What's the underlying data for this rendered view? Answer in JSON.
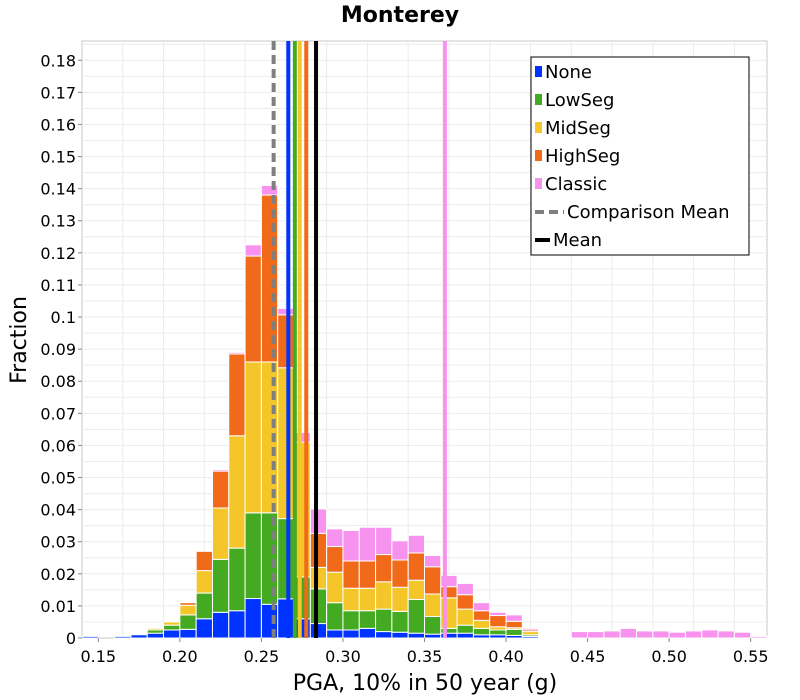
{
  "chart_data": {
    "type": "bar",
    "stacked": true,
    "title": "Monterey",
    "xlabel": "PGA, 10% in 50 year (g)",
    "ylabel": "Fraction",
    "xlim": [
      0.14,
      0.56
    ],
    "ylim": [
      0,
      0.186
    ],
    "bin_width": 0.01,
    "grid": true,
    "legend_position": "top-right",
    "x_ticks": [
      0.15,
      0.2,
      0.25,
      0.3,
      0.35,
      0.4,
      0.45,
      0.5,
      0.55
    ],
    "x_tick_labels": [
      "0.15",
      "0.20",
      "0.25",
      "0.30",
      "0.35",
      "0.40",
      "0.45",
      "0.50",
      "0.55"
    ],
    "y_ticks": [
      0,
      0.01,
      0.02,
      0.03,
      0.04,
      0.05,
      0.06,
      0.07,
      0.08,
      0.09,
      0.1,
      0.11,
      0.12,
      0.13,
      0.14,
      0.15,
      0.16,
      0.17,
      0.18
    ],
    "y_tick_labels": [
      "0",
      "0.01",
      "0.02",
      "0.03",
      "0.04",
      "0.05",
      "0.06",
      "0.07",
      "0.08",
      "0.09",
      "0.1",
      "0.11",
      "0.12",
      "0.13",
      "0.14",
      "0.15",
      "0.16",
      "0.17",
      "0.18"
    ],
    "bin_centers": [
      0.145,
      0.155,
      0.165,
      0.175,
      0.185,
      0.195,
      0.205,
      0.215,
      0.225,
      0.235,
      0.245,
      0.255,
      0.265,
      0.275,
      0.285,
      0.295,
      0.305,
      0.315,
      0.325,
      0.335,
      0.345,
      0.355,
      0.365,
      0.375,
      0.385,
      0.395,
      0.405,
      0.415,
      0.425,
      0.435,
      0.445,
      0.455,
      0.465,
      0.475,
      0.485,
      0.495,
      0.505,
      0.515,
      0.525,
      0.535,
      0.545,
      0.555
    ],
    "series": [
      {
        "name": "None",
        "color": "#0033ff",
        "values": [
          0.0005,
          0,
          0.0005,
          0.001,
          0.0015,
          0.0025,
          0.0027,
          0.006,
          0.008,
          0.0085,
          0.0123,
          0.0105,
          0.0122,
          0.006,
          0.0045,
          0.0025,
          0.0025,
          0.003,
          0.002,
          0.0018,
          0.0015,
          0.0012,
          0.0015,
          0.0015,
          0.001,
          0.001,
          0.0008,
          0.0005,
          0.0003,
          0,
          0,
          0,
          0,
          0,
          0,
          0,
          0,
          0,
          0,
          0,
          0,
          0
        ]
      },
      {
        "name": "LowSeg",
        "color": "#44aa22",
        "values": [
          0,
          0,
          0,
          0,
          0.001,
          0.0015,
          0.0045,
          0.008,
          0.0165,
          0.0195,
          0.0267,
          0.0285,
          0.025,
          0.013,
          0.0108,
          0.0085,
          0.006,
          0.0055,
          0.007,
          0.0065,
          0.0105,
          0.0055,
          0.0015,
          0.0025,
          0.002,
          0.0015,
          0.0019,
          0.0005,
          0.0002,
          0,
          0,
          0,
          0,
          0,
          0,
          0,
          0,
          0,
          0,
          0,
          0,
          0
        ]
      },
      {
        "name": "MidSeg",
        "color": "#f4c62a",
        "values": [
          0,
          0,
          0,
          0,
          0.0005,
          0.001,
          0.003,
          0.007,
          0.016,
          0.035,
          0.047,
          0.047,
          0.047,
          0.042,
          0.0067,
          0.0095,
          0.007,
          0.007,
          0.0085,
          0.0075,
          0.006,
          0.007,
          0.0095,
          0.005,
          0.0025,
          0.001,
          0.0005,
          0.001,
          0.0003,
          0,
          0,
          0,
          0,
          0,
          0,
          0,
          0,
          0,
          0,
          0,
          0,
          0
        ]
      },
      {
        "name": "HighSeg",
        "color": "#f06a1a",
        "values": [
          0,
          0,
          0,
          0,
          0,
          0,
          0.0008,
          0.006,
          0.0115,
          0.0255,
          0.033,
          0.052,
          0.0165,
          0,
          0.0106,
          0.008,
          0.0085,
          0.0085,
          0.0085,
          0.0085,
          0.0085,
          0.0085,
          0.0035,
          0.0045,
          0.003,
          0.0035,
          0.002,
          0.0005,
          0,
          0,
          0,
          0,
          0,
          0,
          0,
          0,
          0,
          0,
          0,
          0,
          0,
          0
        ]
      },
      {
        "name": "Classic",
        "color": "#f792ee",
        "values": [
          0,
          0,
          0,
          0,
          0,
          0,
          0,
          0,
          0.0005,
          0.0005,
          0.0035,
          0.003,
          0.002,
          0.003,
          0.0076,
          0.0055,
          0.0095,
          0.0105,
          0.0085,
          0.006,
          0.0055,
          0.0035,
          0.0035,
          0.0035,
          0.0025,
          0.001,
          0.002,
          0.0005,
          0.0003,
          0.0003,
          0.002,
          0.002,
          0.0022,
          0.003,
          0.0022,
          0.0022,
          0.0018,
          0.0022,
          0.0025,
          0.0022,
          0.0018,
          0.0005
        ]
      }
    ],
    "mean_lines": [
      {
        "name": "None",
        "x": 0.2665,
        "color": "#0033ff",
        "style": "solid"
      },
      {
        "name": "LowSeg",
        "x": 0.2705,
        "color": "#44aa22",
        "style": "solid"
      },
      {
        "name": "MidSeg",
        "x": 0.2735,
        "color": "#f4c62a",
        "style": "solid"
      },
      {
        "name": "HighSeg",
        "x": 0.2775,
        "color": "#f06a1a",
        "style": "solid"
      },
      {
        "name": "Classic",
        "x": 0.3625,
        "color": "#f792ee",
        "style": "solid"
      },
      {
        "name": "Comparison Mean",
        "x": 0.2575,
        "color": "#7f7f7f",
        "style": "dashed"
      },
      {
        "name": "Mean",
        "x": 0.2835,
        "color": "#000000",
        "style": "solid"
      }
    ],
    "legend": [
      {
        "label": "None",
        "color": "#0033ff",
        "kind": "box"
      },
      {
        "label": "LowSeg",
        "color": "#44aa22",
        "kind": "box"
      },
      {
        "label": "MidSeg",
        "color": "#f4c62a",
        "kind": "box"
      },
      {
        "label": "HighSeg",
        "color": "#f06a1a",
        "kind": "box"
      },
      {
        "label": "Classic",
        "color": "#f792ee",
        "kind": "box"
      },
      {
        "label": "Comparison Mean",
        "color": "#7f7f7f",
        "kind": "dashed-line"
      },
      {
        "label": "Mean",
        "color": "#000000",
        "kind": "line"
      }
    ]
  }
}
